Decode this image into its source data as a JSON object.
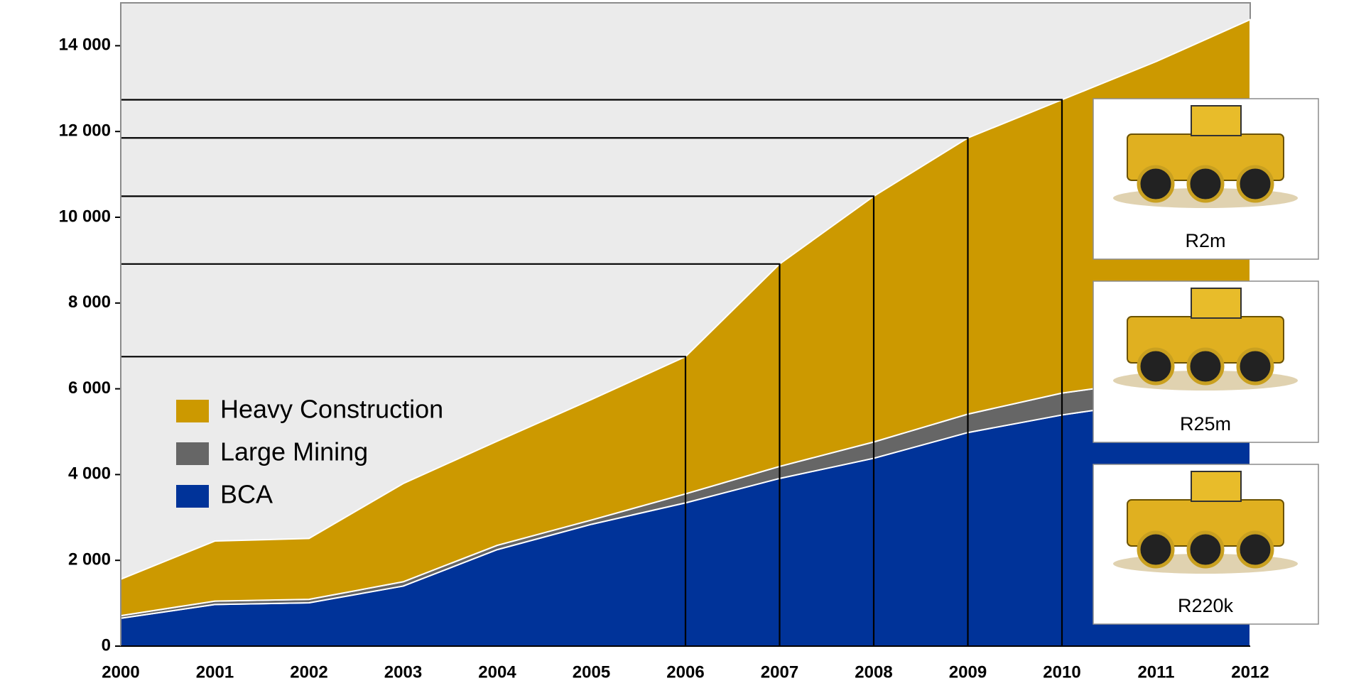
{
  "chart_data": {
    "type": "stacked_area",
    "categories": [
      "2000",
      "2001",
      "2002",
      "2003",
      "2004",
      "2005",
      "2006",
      "2007",
      "2008",
      "2009",
      "2010",
      "2011",
      "2012"
    ],
    "series": [
      {
        "name": "BCA",
        "color": "#003399",
        "values": [
          650,
          970,
          1010,
          1400,
          2250,
          2840,
          3340,
          3910,
          4380,
          4980,
          5390,
          5710,
          5900
        ]
      },
      {
        "name": "Large Mining",
        "color": "#666666",
        "values": [
          60,
          80,
          80,
          100,
          100,
          100,
          210,
          280,
          380,
          430,
          510,
          490,
          550
        ]
      },
      {
        "name": "Heavy Construction",
        "color": "#CC9900",
        "values": [
          850,
          1400,
          1420,
          2290,
          2430,
          2810,
          3200,
          4720,
          5730,
          6440,
          6840,
          7430,
          8160
        ]
      }
    ],
    "ylim": [
      0,
      15000
    ],
    "yticks": [
      0,
      {
        "value": 2000,
        "label": "2 000"
      },
      {
        "value": 4000,
        "label": "4 000"
      },
      {
        "value": 6000,
        "label": "6 000"
      },
      {
        "value": 8000,
        "label": "8 000"
      },
      {
        "value": 10000,
        "label": "10 000"
      },
      {
        "value": 12000,
        "label": "12 000"
      },
      {
        "value": 14000,
        "label": "14 000"
      }
    ],
    "drop_lines": [
      6,
      7,
      8,
      9,
      10
    ],
    "annotations": [
      "R2m",
      "R25m",
      "R220k"
    ],
    "legend": "left"
  }
}
